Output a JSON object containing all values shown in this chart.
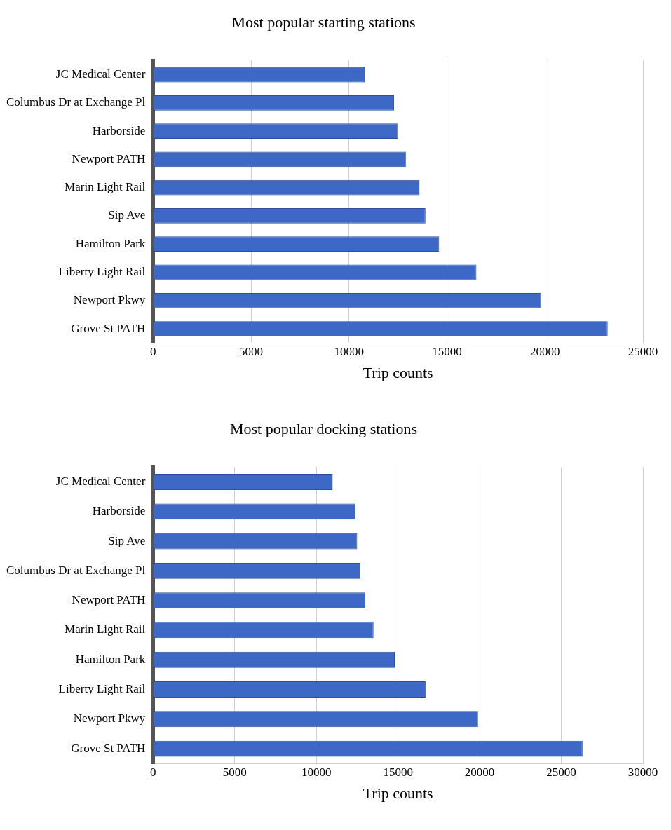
{
  "chart_data": [
    {
      "type": "bar",
      "orientation": "horizontal",
      "title": "Most popular starting stations",
      "xlabel": "Trip counts",
      "categories": [
        "JC Medical Center",
        "Columbus Dr at Exchange Pl",
        "Harborside",
        "Newport PATH",
        "Marin Light Rail",
        "Sip Ave",
        "Hamilton Park",
        "Liberty Light Rail",
        "Newport Pkwy",
        "Grove St PATH"
      ],
      "values": [
        10800,
        12300,
        12500,
        12900,
        13600,
        13900,
        14600,
        16500,
        19800,
        23200
      ],
      "color": "#3d68c6",
      "xlim": [
        0,
        25000
      ],
      "xticks": [
        0,
        5000,
        10000,
        15000,
        20000,
        25000
      ],
      "grid": "x"
    },
    {
      "type": "bar",
      "orientation": "horizontal",
      "title": "Most popular docking stations",
      "xlabel": "Trip counts",
      "categories": [
        "JC Medical Center",
        "Harborside",
        "Sip Ave",
        "Columbus Dr at Exchange Pl",
        "Newport PATH",
        "Marin Light Rail",
        "Hamilton Park",
        "Liberty Light Rail",
        "Newport Pkwy",
        "Grove St PATH"
      ],
      "values": [
        11000,
        12400,
        12500,
        12700,
        13000,
        13500,
        14800,
        16700,
        19900,
        26300
      ],
      "color": "#3d68c6",
      "xlim": [
        0,
        30000
      ],
      "xticks": [
        0,
        5000,
        10000,
        15000,
        20000,
        25000,
        30000
      ],
      "grid": "x"
    }
  ]
}
